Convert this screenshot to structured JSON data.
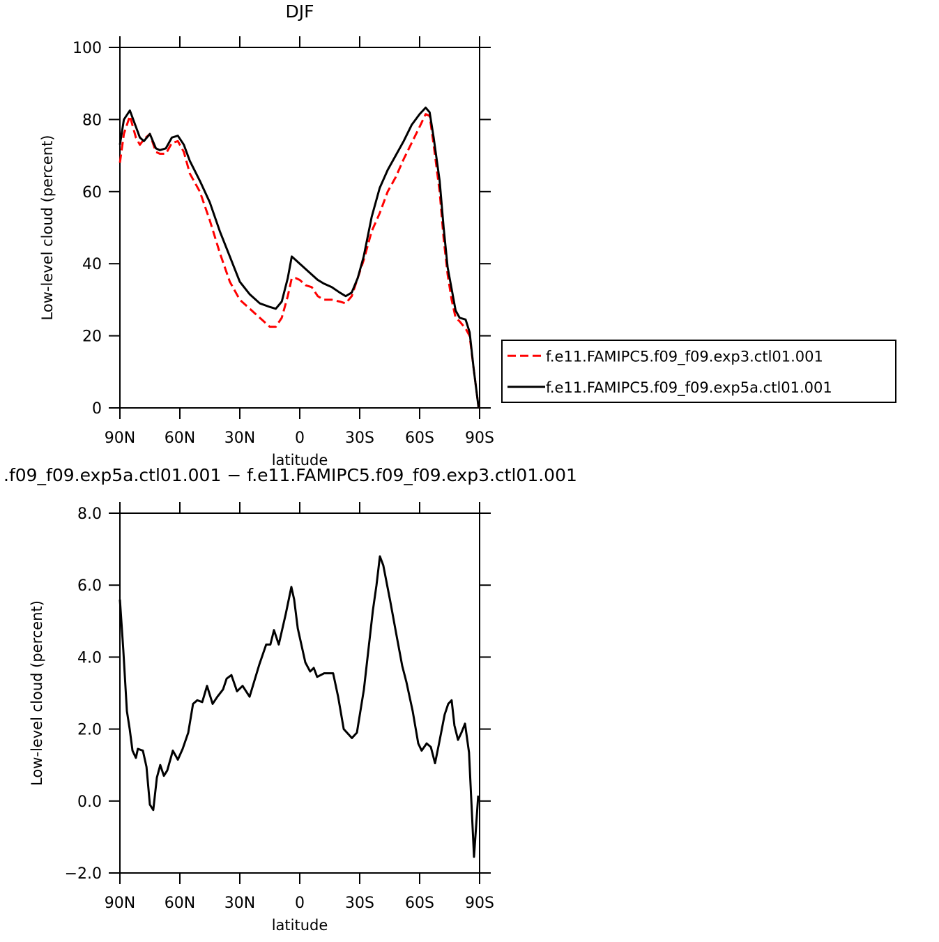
{
  "chart_data": [
    {
      "type": "line",
      "title": "DJF",
      "xlabel": "latitude",
      "ylabel": "Low-level cloud (percent)",
      "x": [
        90,
        88,
        85,
        82,
        80,
        78,
        75,
        72,
        70,
        67,
        64,
        61,
        58,
        55,
        50,
        45,
        40,
        35,
        30,
        25,
        20,
        15,
        12,
        9,
        6,
        4,
        2,
        0,
        -3,
        -6,
        -9,
        -12,
        -16,
        -20,
        -23,
        -26,
        -29,
        -32,
        -36,
        -40,
        -44,
        -48,
        -52,
        -56,
        -60,
        -63,
        -65,
        -67,
        -70,
        -72,
        -74,
        -76,
        -78,
        -80,
        -83,
        -85,
        -87,
        -89.5
      ],
      "series": [
        {
          "name": "f.e11.FAMIPC5.f09_f09.exp3.ctl01.001",
          "color": "#ff0000",
          "line_style": "dashed",
          "values": [
            68,
            76,
            81,
            75,
            73,
            74.5,
            76,
            71,
            70.5,
            70.5,
            73.5,
            74,
            71,
            65,
            60,
            52,
            43,
            35,
            30,
            27.5,
            25,
            22.5,
            22.5,
            25,
            31,
            36,
            36,
            35.5,
            34,
            33.5,
            31,
            30,
            30,
            29.5,
            29,
            31,
            36,
            41,
            49,
            54,
            60,
            64,
            69,
            73.5,
            78,
            81.5,
            81,
            73,
            60,
            47,
            37,
            30,
            25,
            24,
            22,
            20,
            11,
            0
          ]
        },
        {
          "name": "f.e11.FAMIPC5.f09_f09.exp5a.ctl01.001",
          "color": "#000000",
          "line_style": "solid",
          "values": [
            73,
            80,
            82.5,
            78,
            75,
            74,
            76,
            72,
            71.5,
            72,
            75,
            75.5,
            73,
            68.5,
            63,
            57,
            49,
            42,
            35,
            31.5,
            29,
            28,
            27.5,
            29.5,
            36,
            42,
            41,
            40,
            38.5,
            37,
            35.5,
            34.5,
            33.5,
            32,
            31,
            32,
            36,
            42,
            53,
            61,
            66,
            70,
            74,
            78.5,
            81.5,
            83.3,
            82,
            75,
            63,
            50,
            39,
            33,
            27,
            25,
            24.5,
            21,
            11,
            0
          ]
        }
      ],
      "xlim": [
        90,
        -90
      ],
      "xticks": [
        {
          "value": 90,
          "label": "90N"
        },
        {
          "value": 60,
          "label": "60N"
        },
        {
          "value": 30,
          "label": "30N"
        },
        0,
        {
          "value": -30,
          "label": "30S"
        },
        {
          "value": -60,
          "label": "60S"
        },
        {
          "value": -90,
          "label": "90S"
        }
      ],
      "ylim": [
        0,
        100
      ],
      "yticks": [
        0,
        20,
        40,
        60,
        80,
        100
      ],
      "legend": "right"
    },
    {
      "type": "line",
      "title": ".f09_f09.exp5a.ctl01.001 − f.e11.FAMIPC5.f09_f09.exp3.ctl01.001",
      "xlabel": "latitude",
      "ylabel": "Low-level cloud (percent)",
      "x": [
        90,
        88.3,
        86.5,
        85.1,
        83.7,
        82,
        81,
        78.5,
        76.7,
        75,
        73.3,
        71.5,
        69.8,
        68,
        66.3,
        63.5,
        61,
        58.6,
        55.8,
        53.4,
        51.3,
        48.8,
        46.4,
        43.6,
        41.2,
        38.4,
        36.6,
        34.2,
        31.4,
        28.6,
        25.1,
        20.2,
        16.8,
        14.7,
        12.9,
        10.5,
        7,
        4.2,
        2.8,
        1,
        -2.8,
        -5.2,
        -7,
        -8.7,
        -12.2,
        -16.7,
        -19.2,
        -22,
        -26.1,
        -28.6,
        -32.1,
        -36.6,
        -38.4,
        -40.1,
        -41.8,
        -45.3,
        -48.1,
        -51.3,
        -53.4,
        -56.5,
        -59.3,
        -61,
        -63.5,
        -65.6,
        -67.7,
        -69.7,
        -72.5,
        -74.3,
        -76,
        -77.4,
        -79.2,
        -80.9,
        -82.7,
        -84.7,
        -87.2,
        -89.3
      ],
      "series": [
        {
          "color": "#000000",
          "line_style": "solid",
          "values": [
            5.6,
            4.2,
            2.5,
            2.0,
            1.4,
            1.2,
            1.45,
            1.4,
            0.95,
            -0.1,
            -0.25,
            0.65,
            1.0,
            0.7,
            0.85,
            1.4,
            1.15,
            1.45,
            1.9,
            2.7,
            2.8,
            2.75,
            3.2,
            2.7,
            2.9,
            3.1,
            3.4,
            3.5,
            3.05,
            3.2,
            2.9,
            3.8,
            4.35,
            4.35,
            4.75,
            4.35,
            5.2,
            5.95,
            5.6,
            4.8,
            3.85,
            3.6,
            3.7,
            3.45,
            3.55,
            3.55,
            2.9,
            2.0,
            1.75,
            1.9,
            3.1,
            5.3,
            6.0,
            6.8,
            6.55,
            5.55,
            4.7,
            3.75,
            3.3,
            2.5,
            1.6,
            1.4,
            1.6,
            1.5,
            1.05,
            1.6,
            2.4,
            2.7,
            2.8,
            2.1,
            1.7,
            1.9,
            2.15,
            1.35,
            -1.55,
            0.15
          ]
        }
      ],
      "xlim": [
        90,
        -90
      ],
      "xticks": [
        {
          "value": 90,
          "label": "90N"
        },
        {
          "value": 60,
          "label": "60N"
        },
        {
          "value": 30,
          "label": "30N"
        },
        0,
        {
          "value": -30,
          "label": "30S"
        },
        {
          "value": -60,
          "label": "60S"
        },
        {
          "value": -90,
          "label": "90S"
        }
      ],
      "ylim": [
        -2,
        8
      ],
      "yticks": [
        {
          "value": -2,
          "label": "−2.0"
        },
        {
          "value": 0,
          "label": "0.0"
        },
        {
          "value": 2,
          "label": "2.0"
        },
        {
          "value": 4,
          "label": "4.0"
        },
        {
          "value": 6,
          "label": "6.0"
        },
        {
          "value": 8,
          "label": "8.0"
        }
      ]
    }
  ]
}
